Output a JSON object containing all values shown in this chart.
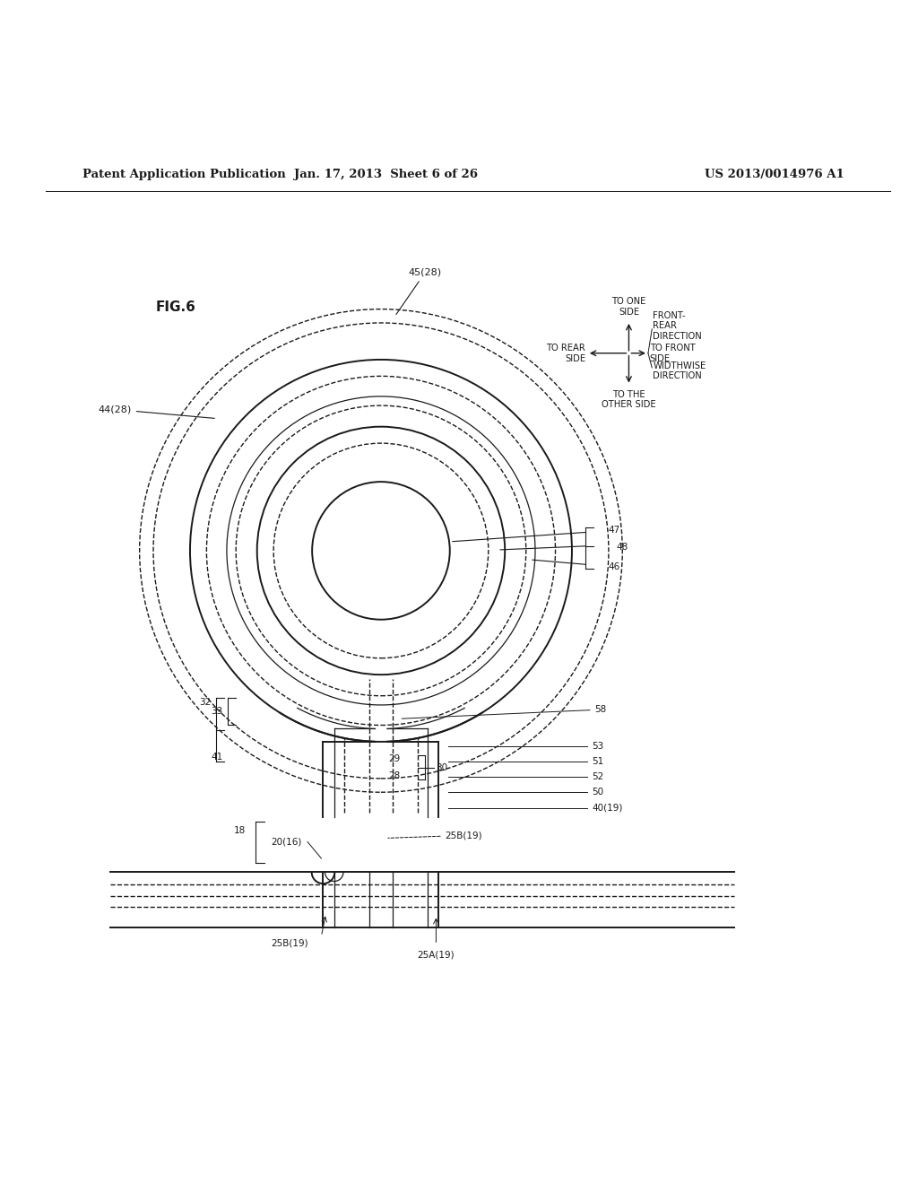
{
  "bg_color": "#ffffff",
  "text_color": "#000000",
  "header_left": "Patent Application Publication",
  "header_mid": "Jan. 17, 2013  Sheet 6 of 26",
  "header_right": "US 2013/0014976 A1",
  "fig_label": "FIG.6"
}
